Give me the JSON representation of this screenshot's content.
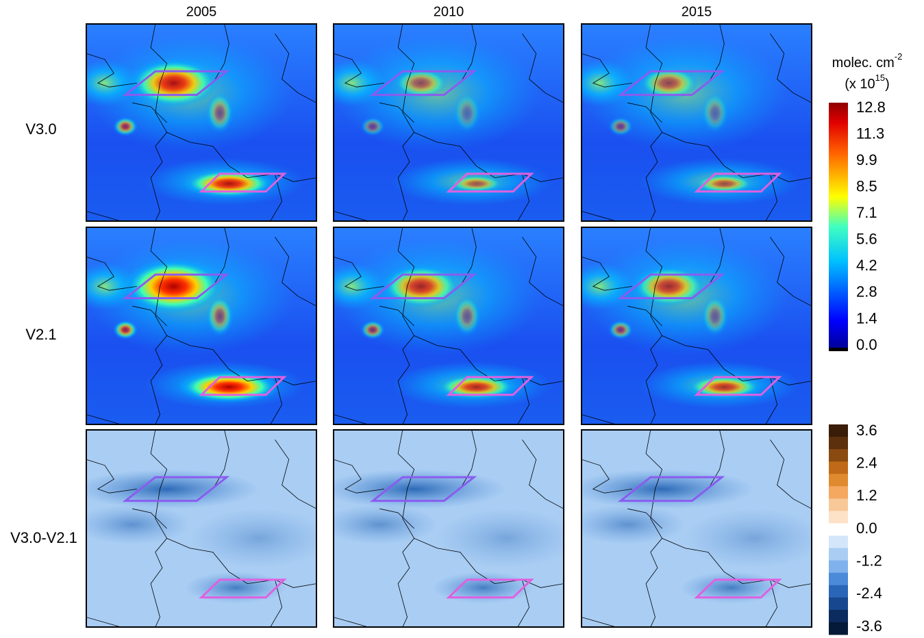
{
  "columns": [
    "2005",
    "2010",
    "2015"
  ],
  "rows": [
    "V3.0",
    "V2.1",
    "V3.0-V2.1"
  ],
  "colorbar_top": {
    "unit": "molec. cm",
    "unit_exp": "-2",
    "scale": "(x 10",
    "scale_exp": "15",
    "scale_close": ")",
    "ticks": [
      "12.8",
      "11.3",
      "9.9",
      "8.5",
      "7.1",
      "5.6",
      "4.2",
      "2.8",
      "1.4",
      "0.0"
    ]
  },
  "colorbar_bottom": {
    "ticks": [
      "3.6",
      "2.4",
      "1.2",
      "0.0",
      "-1.2",
      "-2.4",
      "-3.6"
    ]
  }
}
